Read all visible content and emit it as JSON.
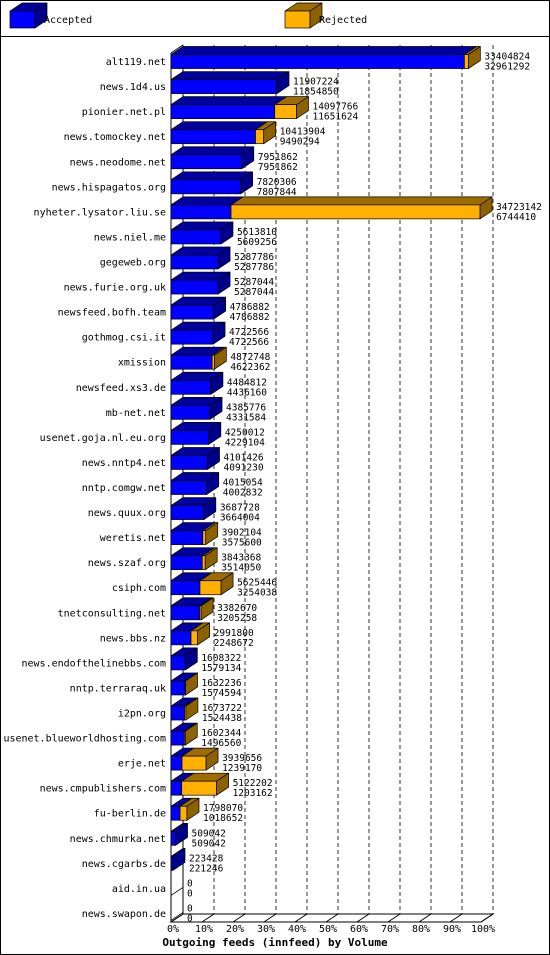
{
  "chart_data": {
    "type": "bar",
    "orientation": "horizontal",
    "stacked": true,
    "three_d": true,
    "title": "Outgoing feeds (innfeed) by Volume",
    "legend_position": "top",
    "grid": "vertical-dashed",
    "xlim": [
      0,
      100
    ],
    "xticks": [
      "0%",
      "10%",
      "20%",
      "30%",
      "40%",
      "50%",
      "60%",
      "70%",
      "80%",
      "90%",
      "100%"
    ],
    "colors": {
      "accepted": "#0000ff",
      "rejected": "#ffb000"
    },
    "series": [
      {
        "name": "Accepted",
        "color": "#0000ff"
      },
      {
        "name": "Rejected",
        "color": "#ffb000"
      }
    ],
    "rows": [
      {
        "name": "alt119.net",
        "total": "33404824",
        "accepted": "32961292"
      },
      {
        "name": "news.1d4.us",
        "total": "11907224",
        "accepted": "11854850"
      },
      {
        "name": "pionier.net.pl",
        "total": "14097766",
        "accepted": "11651624"
      },
      {
        "name": "news.tomockey.net",
        "total": "10413904",
        "accepted": "9490294"
      },
      {
        "name": "news.neodome.net",
        "total": "7951862",
        "accepted": "7951862"
      },
      {
        "name": "news.hispagatos.org",
        "total": "7820306",
        "accepted": "7807844"
      },
      {
        "name": "nyheter.lysator.liu.se",
        "total": "34723142",
        "accepted": "6744410"
      },
      {
        "name": "news.niel.me",
        "total": "5613810",
        "accepted": "5609256"
      },
      {
        "name": "gegeweb.org",
        "total": "5287786",
        "accepted": "5287786"
      },
      {
        "name": "news.furie.org.uk",
        "total": "5287044",
        "accepted": "5287044"
      },
      {
        "name": "newsfeed.bofh.team",
        "total": "4786882",
        "accepted": "4786882"
      },
      {
        "name": "gothmog.csi.it",
        "total": "4722566",
        "accepted": "4722566"
      },
      {
        "name": "xmission",
        "total": "4872748",
        "accepted": "4622362"
      },
      {
        "name": "newsfeed.xs3.de",
        "total": "4484812",
        "accepted": "4436160"
      },
      {
        "name": "mb-net.net",
        "total": "4385776",
        "accepted": "4331584"
      },
      {
        "name": "usenet.goja.nl.eu.org",
        "total": "4250012",
        "accepted": "4229104"
      },
      {
        "name": "news.nntp4.net",
        "total": "4101426",
        "accepted": "4091230"
      },
      {
        "name": "nntp.comgw.net",
        "total": "4015054",
        "accepted": "4002832"
      },
      {
        "name": "news.quux.org",
        "total": "3687728",
        "accepted": "3664004"
      },
      {
        "name": "weretis.net",
        "total": "3902104",
        "accepted": "3575600"
      },
      {
        "name": "news.szaf.org",
        "total": "3843368",
        "accepted": "3514050"
      },
      {
        "name": "csiph.com",
        "total": "5625446",
        "accepted": "3254038"
      },
      {
        "name": "tnetconsulting.net",
        "total": "3382670",
        "accepted": "3205258"
      },
      {
        "name": "news.bbs.nz",
        "total": "2991800",
        "accepted": "2248672"
      },
      {
        "name": "news.endofthelinebbs.com",
        "total": "1608322",
        "accepted": "1579134"
      },
      {
        "name": "nntp.terraraq.uk",
        "total": "1632236",
        "accepted": "1574594"
      },
      {
        "name": "i2pn.org",
        "total": "1673722",
        "accepted": "1524438"
      },
      {
        "name": "usenet.blueworldhosting.com",
        "total": "1602344",
        "accepted": "1496560"
      },
      {
        "name": "erje.net",
        "total": "3939656",
        "accepted": "1239170"
      },
      {
        "name": "news.cmpublishers.com",
        "total": "5122202",
        "accepted": "1203162"
      },
      {
        "name": "fu-berlin.de",
        "total": "1798070",
        "accepted": "1018652"
      },
      {
        "name": "news.chmurka.net",
        "total": "509042",
        "accepted": "509042"
      },
      {
        "name": "news.cgarbs.de",
        "total": "223428",
        "accepted": "221246"
      },
      {
        "name": "aid.in.ua",
        "total": "0",
        "accepted": "0"
      },
      {
        "name": "news.swapon.de",
        "total": "0",
        "accepted": "0"
      }
    ]
  }
}
